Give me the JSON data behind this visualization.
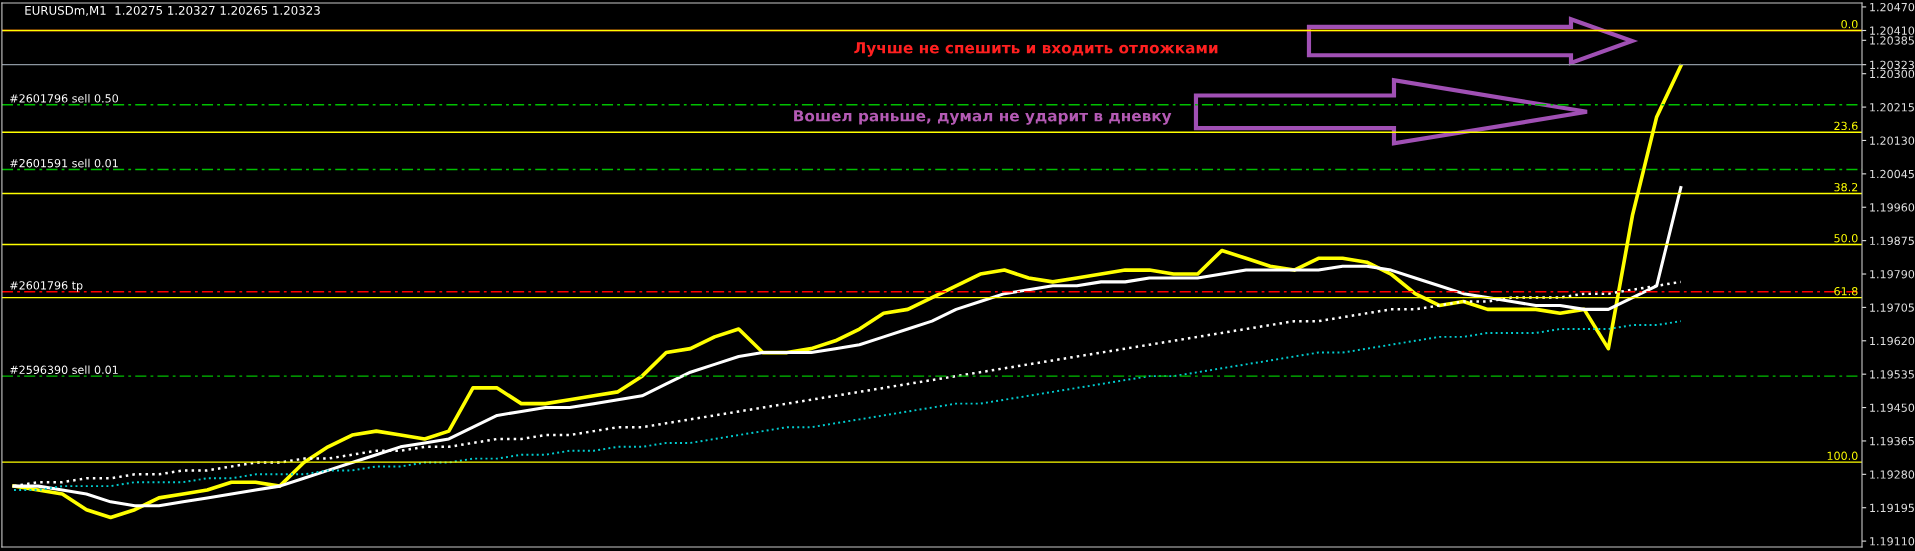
{
  "chart_data": {
    "type": "line",
    "title": "EURUSDm,M1  1.20275 1.20327 1.20265 1.20323",
    "categories": [
      null,
      null,
      null,
      null,
      null,
      null,
      null,
      null,
      null,
      null,
      null,
      null,
      null,
      null,
      null,
      null,
      null,
      null,
      null,
      null,
      null,
      null,
      null,
      null,
      null,
      null,
      null,
      null,
      null,
      null,
      null,
      null,
      null,
      null,
      null,
      null,
      null,
      null,
      null,
      null,
      null,
      null,
      null,
      null,
      null,
      null,
      null,
      null,
      null,
      null,
      null,
      null,
      null,
      null,
      null,
      null,
      null,
      null,
      null,
      null,
      null,
      null,
      null,
      null,
      null,
      null,
      null,
      null,
      null,
      null,
      null,
      null,
      null,
      null,
      null,
      null,
      null
    ],
    "series": [
      {
        "color": "#ffff00",
        "line_style": "solid",
        "values": [
          1.1925,
          1.1924,
          1.1923,
          1.1919,
          1.1917,
          1.1919,
          1.1922,
          1.1923,
          1.1924,
          1.1926,
          1.1926,
          1.1925,
          1.1931,
          1.1935,
          1.1938,
          1.1939,
          1.1938,
          1.1937,
          1.1939,
          1.195,
          1.195,
          1.1946,
          1.1946,
          1.1947,
          1.1948,
          1.1949,
          1.1953,
          1.1959,
          1.196,
          1.1963,
          1.1965,
          1.1959,
          1.1959,
          1.196,
          1.1962,
          1.1965,
          1.1969,
          1.197,
          1.1973,
          1.1976,
          1.1979,
          1.198,
          1.1978,
          1.1977,
          1.1978,
          1.1979,
          1.198,
          1.198,
          1.1979,
          1.1979,
          1.1985,
          1.1983,
          1.1981,
          1.198,
          1.1983,
          1.1983,
          1.1982,
          1.1979,
          1.1974,
          1.1971,
          1.1972,
          1.197,
          1.197,
          1.197,
          1.1969,
          1.197,
          1.196,
          1.1994,
          1.2019,
          1.2032,
          null,
          null,
          null,
          null,
          null,
          null,
          null
        ]
      },
      {
        "color": "#ffffff",
        "line_style": "solid",
        "values": [
          1.1925,
          1.1925,
          1.1924,
          1.1923,
          1.1921,
          1.192,
          1.192,
          1.1921,
          1.1922,
          1.1923,
          1.1924,
          1.1925,
          1.1927,
          1.1929,
          1.1931,
          1.1933,
          1.1935,
          1.1936,
          1.1937,
          1.194,
          1.1943,
          1.1944,
          1.1945,
          1.1945,
          1.1946,
          1.1947,
          1.1948,
          1.1951,
          1.1954,
          1.1956,
          1.1958,
          1.1959,
          1.1959,
          1.1959,
          1.196,
          1.1961,
          1.1963,
          1.1965,
          1.1967,
          1.197,
          1.1972,
          1.1974,
          1.1975,
          1.1976,
          1.1976,
          1.1977,
          1.1977,
          1.1978,
          1.1978,
          1.1978,
          1.1979,
          1.198,
          1.198,
          1.198,
          1.198,
          1.1981,
          1.1981,
          1.198,
          1.1978,
          1.1976,
          1.1974,
          1.1973,
          1.1972,
          1.1971,
          1.1971,
          1.197,
          1.197,
          1.1973,
          1.1976,
          1.2001,
          null,
          null,
          null,
          null,
          null,
          null,
          null
        ]
      },
      {
        "color": "#ffffff",
        "line_style": "dotted",
        "values": [
          1.1925,
          1.1926,
          1.1926,
          1.1927,
          1.1927,
          1.1928,
          1.1928,
          1.1929,
          1.1929,
          1.193,
          1.1931,
          1.1931,
          1.1932,
          1.1932,
          1.1933,
          1.1934,
          1.1934,
          1.1935,
          1.1935,
          1.1936,
          1.1937,
          1.1937,
          1.1938,
          1.1938,
          1.1939,
          1.194,
          1.194,
          1.1941,
          1.1942,
          1.1943,
          1.1944,
          1.1945,
          1.1946,
          1.1947,
          1.1948,
          1.1949,
          1.195,
          1.1951,
          1.1952,
          1.1953,
          1.1954,
          1.1955,
          1.1956,
          1.1957,
          1.1958,
          1.1959,
          1.196,
          1.1961,
          1.1962,
          1.1963,
          1.1964,
          1.1965,
          1.1966,
          1.1967,
          1.1967,
          1.1968,
          1.1969,
          1.197,
          1.197,
          1.1971,
          1.1972,
          1.1972,
          1.1973,
          1.1973,
          1.1973,
          1.1974,
          1.1974,
          1.1975,
          1.1976,
          1.1977,
          null,
          null,
          null,
          null,
          null,
          null,
          null
        ]
      },
      {
        "color": "#00ced1",
        "line_style": "dotted",
        "values": [
          1.1924,
          1.1924,
          1.1925,
          1.1925,
          1.1925,
          1.1926,
          1.1926,
          1.1926,
          1.1927,
          1.1927,
          1.1928,
          1.1928,
          1.1928,
          1.1929,
          1.1929,
          1.193,
          1.193,
          1.1931,
          1.1931,
          1.1932,
          1.1932,
          1.1933,
          1.1933,
          1.1934,
          1.1934,
          1.1935,
          1.1935,
          1.1936,
          1.1936,
          1.1937,
          1.1938,
          1.1939,
          1.194,
          1.194,
          1.1941,
          1.1942,
          1.1943,
          1.1944,
          1.1945,
          1.1946,
          1.1946,
          1.1947,
          1.1948,
          1.1949,
          1.195,
          1.1951,
          1.1952,
          1.1953,
          1.1953,
          1.1954,
          1.1955,
          1.1956,
          1.1957,
          1.1958,
          1.1959,
          1.1959,
          1.196,
          1.1961,
          1.1962,
          1.1963,
          1.1963,
          1.1964,
          1.1964,
          1.1964,
          1.1965,
          1.1965,
          1.1965,
          1.1966,
          1.1966,
          1.1967,
          null,
          null,
          null,
          null,
          null,
          null,
          null
        ]
      }
    ],
    "ylim": [
      1.19095,
      1.2048
    ],
    "yticks": [
      {
        "value": 1.1911,
        "label": "1.19110"
      },
      {
        "value": 1.19195,
        "label": "1.19195"
      },
      {
        "value": 1.1928,
        "label": "1.19280"
      },
      {
        "value": 1.19365,
        "label": "1.19365"
      },
      {
        "value": 1.1945,
        "label": "1.19450"
      },
      {
        "value": 1.19535,
        "label": "1.19535"
      },
      {
        "value": 1.1962,
        "label": "1.19620"
      },
      {
        "value": 1.19705,
        "label": "1.19705"
      },
      {
        "value": 1.1979,
        "label": "1.19790"
      },
      {
        "value": 1.19875,
        "label": "1.19875"
      },
      {
        "value": 1.1996,
        "label": "1.19960"
      },
      {
        "value": 1.20045,
        "label": "1.20045"
      },
      {
        "value": 1.2013,
        "label": "1.20130"
      },
      {
        "value": 1.20215,
        "label": "1.20215"
      },
      {
        "value": 1.203,
        "label": "1.20300"
      },
      {
        "value": 1.20323,
        "label": "1.20323"
      },
      {
        "value": 1.20385,
        "label": "1.20385"
      },
      {
        "value": 1.2041,
        "label": "1.20410"
      },
      {
        "value": 1.2047,
        "label": "1.20470"
      }
    ],
    "ref_lines": [
      {
        "axis": "y",
        "value": 1.2041,
        "color": "#ff0000",
        "line_style": "solid"
      },
      {
        "axis": "y",
        "value": 1.20323,
        "color": "#8c96a0",
        "line_style": "solid"
      },
      {
        "axis": "y",
        "value": 1.20221,
        "color": "#00c000",
        "line_style": "dashed"
      },
      {
        "axis": "y",
        "value": 1.20056,
        "color": "#00c000",
        "line_style": "dashed"
      },
      {
        "axis": "y",
        "value": 1.19745,
        "color": "#ff0000",
        "line_style": "dashed"
      },
      {
        "axis": "y",
        "value": 1.1953,
        "color": "#00c000",
        "line_style": "dashed"
      },
      {
        "axis": "y",
        "value": 1.2041,
        "color": "#ffff00",
        "line_style": "solid"
      },
      {
        "axis": "y",
        "value": 1.20151,
        "color": "#ffff00",
        "line_style": "solid"
      },
      {
        "axis": "y",
        "value": 1.19995,
        "color": "#ffff00",
        "line_style": "solid"
      },
      {
        "axis": "y",
        "value": 1.19865,
        "color": "#ffff00",
        "line_style": "solid"
      },
      {
        "axis": "y",
        "value": 1.1973,
        "color": "#ffff00",
        "line_style": "solid"
      },
      {
        "axis": "y",
        "value": 1.19311,
        "color": "#ffff00",
        "line_style": "solid"
      }
    ],
    "annotations": [
      {
        "text": "0.0",
        "y": 1.2041
      },
      {
        "text": "23.6",
        "y": 1.20151
      },
      {
        "text": "38.2",
        "y": 1.19995
      },
      {
        "text": "50.0",
        "y": 1.19865
      },
      {
        "text": "61.8",
        "y": 1.1973
      },
      {
        "text": "100.0",
        "y": 1.19311
      },
      {
        "text": "#2601796 sell 0.50",
        "y": 1.20221
      },
      {
        "text": "#2601591 sell 0.01",
        "y": 1.20056
      },
      {
        "text": "#2601796 tp",
        "y": 1.19745
      },
      {
        "text": "#2596390 sell 0.01",
        "y": 1.1953
      },
      "Лучше не спешить и входить отложками",
      "Вошел раньше, думал не ударит в дневку"
    ],
    "grid": false,
    "legend": false
  }
}
